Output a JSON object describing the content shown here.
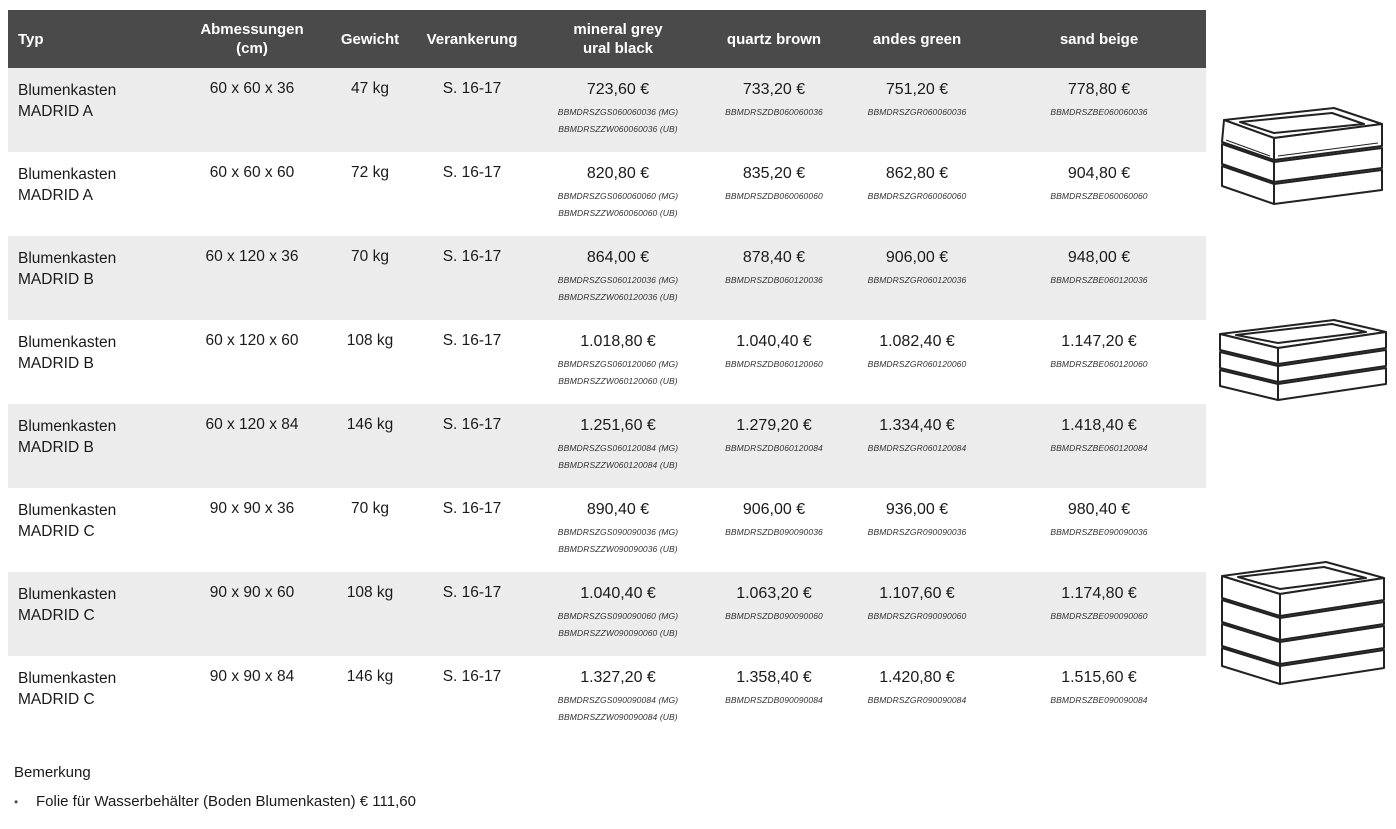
{
  "table": {
    "headers": {
      "typ": "Typ",
      "abm_line1": "Abmessungen",
      "abm_line2": "(cm)",
      "gewicht": "Gewicht",
      "verankerung": "Verankerung",
      "grey_line1": "mineral grey",
      "grey_line2": "ural black",
      "brown": "quartz brown",
      "green": "andes green",
      "beige": "sand beige"
    },
    "rows": [
      {
        "type1": "Blumenkasten",
        "type2": "MADRID A",
        "dims": "60 x 60 x 36",
        "weight": "47 kg",
        "anchor": "S. 16-17",
        "grey": {
          "price": "723,60 €",
          "code1": "BBMDRSZGS060060036 (MG)",
          "code2": "BBMDRSZZW060060036 (UB)"
        },
        "brown": {
          "price": "733,20 €",
          "code": "BBMDRSZDB060060036"
        },
        "green": {
          "price": "751,20 €",
          "code": "BBMDRSZGR060060036"
        },
        "beige": {
          "price": "778,80 €",
          "code": "BBMDRSZBE060060036"
        }
      },
      {
        "type1": "Blumenkasten",
        "type2": "MADRID A",
        "dims": "60 x 60 x 60",
        "weight": "72 kg",
        "anchor": "S. 16-17",
        "grey": {
          "price": "820,80 €",
          "code1": "BBMDRSZGS060060060 (MG)",
          "code2": "BBMDRSZZW060060060 (UB)"
        },
        "brown": {
          "price": "835,20 €",
          "code": "BBMDRSZDB060060060"
        },
        "green": {
          "price": "862,80 €",
          "code": "BBMDRSZGR060060060"
        },
        "beige": {
          "price": "904,80 €",
          "code": "BBMDRSZBE060060060"
        }
      },
      {
        "type1": "Blumenkasten",
        "type2": "MADRID B",
        "dims": "60 x 120 x 36",
        "weight": "70 kg",
        "anchor": "S. 16-17",
        "grey": {
          "price": "864,00 €",
          "code1": "BBMDRSZGS060120036 (MG)",
          "code2": "BBMDRSZZW060120036 (UB)"
        },
        "brown": {
          "price": "878,40 €",
          "code": "BBMDRSZDB060120036"
        },
        "green": {
          "price": "906,00 €",
          "code": "BBMDRSZGR060120036"
        },
        "beige": {
          "price": "948,00 €",
          "code": "BBMDRSZBE060120036"
        }
      },
      {
        "type1": "Blumenkasten",
        "type2": "MADRID B",
        "dims": "60 x 120 x 60",
        "weight": "108 kg",
        "anchor": "S. 16-17",
        "grey": {
          "price": "1.018,80 €",
          "code1": "BBMDRSZGS060120060 (MG)",
          "code2": "BBMDRSZZW060120060 (UB)"
        },
        "brown": {
          "price": "1.040,40 €",
          "code": "BBMDRSZDB060120060"
        },
        "green": {
          "price": "1.082,40 €",
          "code": "BBMDRSZGR060120060"
        },
        "beige": {
          "price": "1.147,20 €",
          "code": "BBMDRSZBE060120060"
        }
      },
      {
        "type1": "Blumenkasten",
        "type2": "MADRID B",
        "dims": "60 x 120 x 84",
        "weight": "146 kg",
        "anchor": "S. 16-17",
        "grey": {
          "price": "1.251,60 €",
          "code1": "BBMDRSZGS060120084 (MG)",
          "code2": "BBMDRSZZW060120084 (UB)"
        },
        "brown": {
          "price": "1.279,20 €",
          "code": "BBMDRSZDB060120084"
        },
        "green": {
          "price": "1.334,40 €",
          "code": "BBMDRSZGR060120084"
        },
        "beige": {
          "price": "1.418,40 €",
          "code": "BBMDRSZBE060120084"
        }
      },
      {
        "type1": "Blumenkasten",
        "type2": "MADRID C",
        "dims": "90 x 90 x 36",
        "weight": "70 kg",
        "anchor": "S. 16-17",
        "grey": {
          "price": "890,40 €",
          "code1": "BBMDRSZGS090090036 (MG)",
          "code2": "BBMDRSZZW090090036 (UB)"
        },
        "brown": {
          "price": "906,00 €",
          "code": "BBMDRSZDB090090036"
        },
        "green": {
          "price": "936,00 €",
          "code": "BBMDRSZGR090090036"
        },
        "beige": {
          "price": "980,40 €",
          "code": "BBMDRSZBE090090036"
        }
      },
      {
        "type1": "Blumenkasten",
        "type2": "MADRID C",
        "dims": "90 x 90 x 60",
        "weight": "108 kg",
        "anchor": "S. 16-17",
        "grey": {
          "price": "1.040,40 €",
          "code1": "BBMDRSZGS090090060 (MG)",
          "code2": "BBMDRSZZW090090060 (UB)"
        },
        "brown": {
          "price": "1.063,20 €",
          "code": "BBMDRSZDB090090060"
        },
        "green": {
          "price": "1.107,60 €",
          "code": "BBMDRSZGR090090060"
        },
        "beige": {
          "price": "1.174,80 €",
          "code": "BBMDRSZBE090090060"
        }
      },
      {
        "type1": "Blumenkasten",
        "type2": "MADRID C",
        "dims": "90 x 90 x 84",
        "weight": "146 kg",
        "anchor": "S. 16-17",
        "grey": {
          "price": "1.327,20 €",
          "code1": "BBMDRSZGS090090084 (MG)",
          "code2": "BBMDRSZZW090090084 (UB)"
        },
        "brown": {
          "price": "1.358,40 €",
          "code": "BBMDRSZDB090090084"
        },
        "green": {
          "price": "1.420,80 €",
          "code": "BBMDRSZGR090090084"
        },
        "beige": {
          "price": "1.515,60 €",
          "code": "BBMDRSZBE090090084"
        }
      }
    ]
  },
  "remarks": {
    "title": "Bemerkung",
    "items": [
      "Folie für Wasserbehälter (Boden Blumenkasten) € 111,60"
    ]
  },
  "colors": {
    "header_bg": "#4a4a4a",
    "row_shade": "#ececec"
  }
}
